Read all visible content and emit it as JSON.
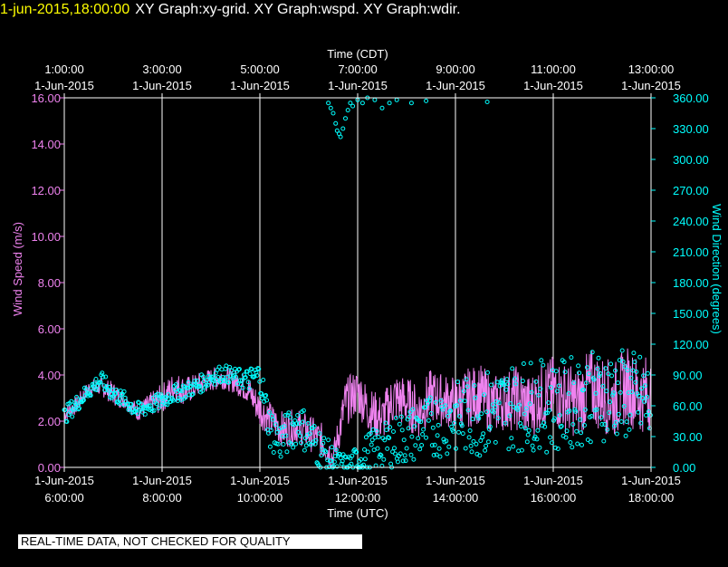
{
  "header": {
    "timestamp": "1-jun-2015,18:00:00",
    "title": "XY Graph:xy-grid.  XY Graph:wspd.  XY Graph:wdir."
  },
  "disclaimer": "REAL-TIME DATA, NOT CHECKED FOR QUALITY",
  "colors": {
    "wind_speed": "#ee82ee",
    "wind_direction": "#00ffff",
    "grid": "#ffffff",
    "axis_text": "#ffffff",
    "background": "#000000"
  },
  "chart_data": {
    "type": "line",
    "title": "",
    "grid": true,
    "x_axis_bottom": {
      "label": "Time (UTC)",
      "range": [
        "1-Jun-2015 06:00:00",
        "1-Jun-2015 18:00:00"
      ],
      "ticks": [
        {
          "date": "1-Jun-2015",
          "time": "6:00:00"
        },
        {
          "date": "1-Jun-2015",
          "time": "8:00:00"
        },
        {
          "date": "1-Jun-2015",
          "time": "10:00:00"
        },
        {
          "date": "1-Jun-2015",
          "time": "12:00:00"
        },
        {
          "date": "1-Jun-2015",
          "time": "14:00:00"
        },
        {
          "date": "1-Jun-2015",
          "time": "16:00:00"
        },
        {
          "date": "1-Jun-2015",
          "time": "18:00:00"
        }
      ]
    },
    "x_axis_top": {
      "label": "Time (CDT)",
      "ticks": [
        {
          "time": "1:00:00",
          "date": "1-Jun-2015"
        },
        {
          "time": "3:00:00",
          "date": "1-Jun-2015"
        },
        {
          "time": "5:00:00",
          "date": "1-Jun-2015"
        },
        {
          "time": "7:00:00",
          "date": "1-Jun-2015"
        },
        {
          "time": "9:00:00",
          "date": "1-Jun-2015"
        },
        {
          "time": "11:00:00",
          "date": "1-Jun-2015"
        },
        {
          "time": "13:00:00",
          "date": "1-Jun-2015"
        }
      ]
    },
    "y_axis_left": {
      "label": "Wind Speed (m/s)",
      "range": [
        0,
        16
      ],
      "ticks": [
        "0.00",
        "2.00",
        "4.00",
        "6.00",
        "8.00",
        "10.00",
        "12.00",
        "14.00",
        "16.00"
      ]
    },
    "y_axis_right": {
      "label": "Wind Direction (degrees)",
      "range": [
        0,
        360
      ],
      "ticks": [
        "0.00",
        "30.00",
        "60.00",
        "90.00",
        "120.00",
        "150.00",
        "180.00",
        "210.00",
        "240.00",
        "270.00",
        "300.00",
        "330.00",
        "360.00"
      ]
    },
    "series": [
      {
        "name": "wspd",
        "axis": "left",
        "style": "line",
        "x_hours_utc": [
          6.0,
          6.25,
          6.5,
          6.75,
          7.0,
          7.25,
          7.5,
          7.75,
          8.0,
          8.25,
          8.5,
          8.75,
          9.0,
          9.25,
          9.5,
          9.75,
          10.0,
          10.25,
          10.5,
          10.75,
          11.0,
          11.25,
          11.5,
          11.75,
          12.0,
          12.25,
          12.5,
          12.75,
          13.0,
          13.25,
          13.5,
          13.75,
          14.0,
          14.25,
          14.5,
          14.75,
          15.0,
          15.25,
          15.5,
          15.75,
          16.0,
          16.25,
          16.5,
          16.75,
          17.0,
          17.25,
          17.5,
          17.75,
          18.0
        ],
        "values": [
          2.3,
          2.7,
          3.4,
          3.5,
          3.2,
          2.9,
          2.4,
          2.7,
          3.0,
          3.5,
          3.3,
          3.6,
          3.8,
          3.9,
          3.7,
          3.4,
          2.5,
          2.0,
          1.6,
          1.8,
          1.5,
          1.2,
          0.4,
          2.8,
          3.3,
          2.4,
          2.1,
          3.0,
          2.8,
          2.4,
          3.1,
          2.9,
          2.8,
          3.0,
          3.2,
          2.7,
          2.9,
          3.0,
          2.6,
          3.1,
          3.3,
          3.0,
          2.8,
          3.5,
          3.2,
          2.9,
          3.6,
          3.1,
          3.3
        ],
        "noise": [
          0.3,
          0.3,
          0.3,
          0.3,
          0.4,
          0.3,
          0.3,
          0.4,
          0.5,
          0.5,
          0.5,
          0.4,
          0.4,
          0.4,
          0.4,
          0.5,
          0.6,
          0.6,
          0.6,
          0.6,
          0.6,
          0.6,
          0.5,
          0.8,
          0.8,
          0.8,
          0.8,
          0.9,
          0.9,
          0.9,
          0.9,
          0.9,
          0.9,
          1.0,
          1.0,
          1.0,
          1.0,
          1.1,
          1.1,
          1.1,
          1.2,
          1.2,
          1.2,
          1.3,
          1.3,
          1.3,
          1.3,
          1.3,
          1.3
        ]
      },
      {
        "name": "wdir",
        "axis": "right",
        "style": "circles",
        "x_hours_utc": [
          6.0,
          6.25,
          6.5,
          6.75,
          7.0,
          7.25,
          7.5,
          7.75,
          8.0,
          8.25,
          8.5,
          8.75,
          9.0,
          9.25,
          9.5,
          9.75,
          10.0,
          10.2,
          10.4,
          10.6,
          10.8,
          11.0,
          11.2,
          11.4,
          11.6,
          11.8,
          12.0,
          12.25,
          12.5,
          12.75,
          13.0,
          13.25,
          13.5,
          13.75,
          14.0,
          14.25,
          14.5,
          14.75,
          15.0,
          15.25,
          15.5,
          15.75,
          16.0,
          16.25,
          16.5,
          16.75,
          17.0,
          17.25,
          17.5,
          17.75,
          18.0
        ],
        "values": [
          50,
          62,
          75,
          85,
          72,
          65,
          55,
          60,
          65,
          72,
          75,
          80,
          88,
          92,
          88,
          85,
          90,
          40,
          25,
          35,
          45,
          30,
          20,
          10,
          5,
          3,
          8,
          15,
          20,
          25,
          30,
          35,
          40,
          45,
          48,
          50,
          52,
          55,
          58,
          60,
          62,
          60,
          58,
          62,
          65,
          68,
          70,
          72,
          70,
          68,
          60
        ],
        "noise": [
          6,
          6,
          6,
          6,
          6,
          6,
          6,
          6,
          6,
          6,
          6,
          6,
          6,
          6,
          6,
          8,
          10,
          15,
          15,
          15,
          15,
          15,
          15,
          12,
          8,
          6,
          10,
          15,
          15,
          18,
          20,
          20,
          22,
          25,
          25,
          28,
          30,
          30,
          30,
          32,
          32,
          32,
          32,
          32,
          32,
          32,
          32,
          32,
          32,
          32,
          32
        ],
        "extra_points": [
          {
            "x_hours_utc": 11.4,
            "value": 355
          },
          {
            "x_hours_utc": 11.45,
            "value": 350
          },
          {
            "x_hours_utc": 11.5,
            "value": 345
          },
          {
            "x_hours_utc": 11.55,
            "value": 335
          },
          {
            "x_hours_utc": 11.58,
            "value": 328
          },
          {
            "x_hours_utc": 11.62,
            "value": 325
          },
          {
            "x_hours_utc": 11.65,
            "value": 322
          },
          {
            "x_hours_utc": 11.7,
            "value": 330
          },
          {
            "x_hours_utc": 11.75,
            "value": 340
          },
          {
            "x_hours_utc": 11.8,
            "value": 348
          },
          {
            "x_hours_utc": 11.85,
            "value": 355
          },
          {
            "x_hours_utc": 11.9,
            "value": 352
          },
          {
            "x_hours_utc": 12.0,
            "value": 358
          },
          {
            "x_hours_utc": 12.1,
            "value": 355
          },
          {
            "x_hours_utc": 12.2,
            "value": 360
          },
          {
            "x_hours_utc": 12.35,
            "value": 358
          },
          {
            "x_hours_utc": 12.5,
            "value": 350
          },
          {
            "x_hours_utc": 12.65,
            "value": 355
          },
          {
            "x_hours_utc": 12.8,
            "value": 358
          },
          {
            "x_hours_utc": 13.1,
            "value": 355
          },
          {
            "x_hours_utc": 13.4,
            "value": 357
          },
          {
            "x_hours_utc": 14.65,
            "value": 356
          }
        ]
      }
    ]
  }
}
